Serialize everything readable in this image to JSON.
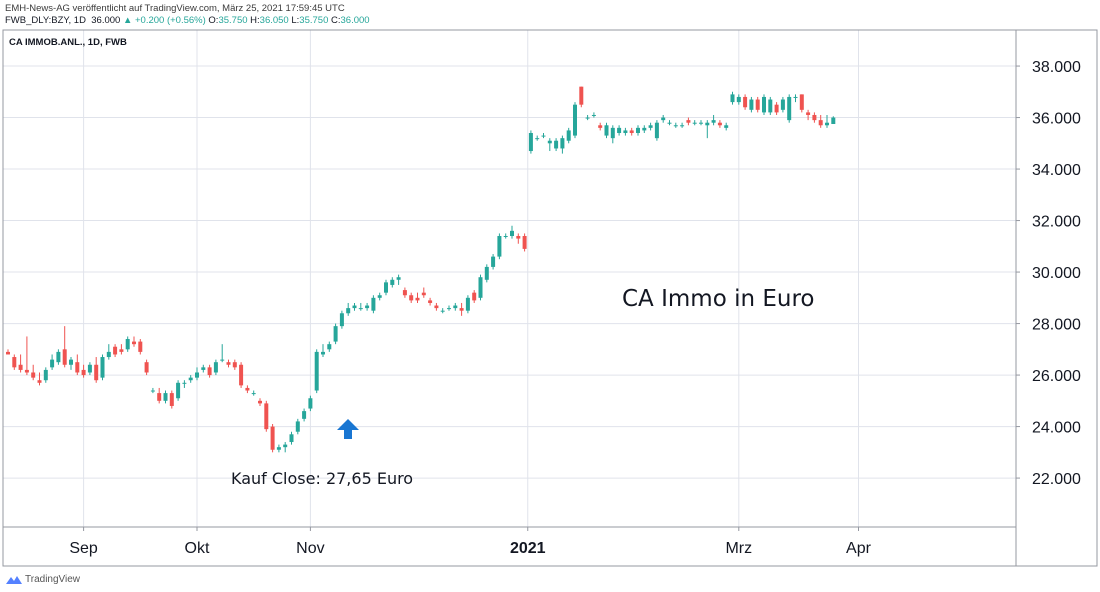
{
  "header": {
    "line1": "EMH-News-AG veröffentlicht auf TradingView.com, März 25, 2021 17:59:45 UTC",
    "ticker": "FWB_DLY:BZY, 1D",
    "last": "36.000",
    "change": "▲ +0.200 (+0.56%)",
    "ohlc_o": "O:",
    "ohlc_o_val": "35.750",
    "ohlc_h": "H:",
    "ohlc_h_val": "36.050",
    "ohlc_l": "L:",
    "ohlc_l_val": "35.750",
    "ohlc_c": "C:",
    "ohlc_c_val": "36.000"
  },
  "symbol_label": "CA IMMOB.ANL., 1D, FWB",
  "annotations": {
    "title": "CA Immo in Euro",
    "buy": "Kauf Close: 27,65 Euro"
  },
  "footer": {
    "brand": "TradingView"
  },
  "colors": {
    "up": "#26a69a",
    "down": "#ef5350",
    "arrow": "#1976d2",
    "grid": "#e0e3eb"
  },
  "chart_data": {
    "type": "candlestick",
    "title": "",
    "ylim": [
      20.1,
      39.4
    ],
    "y_ticks": [
      "22.000",
      "24.000",
      "26.000",
      "28.000",
      "30.000",
      "32.000",
      "34.000",
      "36.000",
      "38.000"
    ],
    "x_ticks": [
      "Sep",
      "Okt",
      "Nov",
      "2021",
      "Mrz",
      "Apr"
    ],
    "grid": true,
    "arrow_marker": {
      "label": "buy",
      "direction": "up"
    },
    "series": [
      {
        "x": 0,
        "o": 26.9,
        "h": 27.0,
        "l": 26.8,
        "c": 26.8
      },
      {
        "x": 1,
        "o": 26.7,
        "h": 26.8,
        "l": 26.2,
        "c": 26.3
      },
      {
        "x": 2,
        "o": 26.4,
        "h": 26.8,
        "l": 26.1,
        "c": 26.2
      },
      {
        "x": 3,
        "o": 26.2,
        "h": 27.5,
        "l": 26.0,
        "c": 26.1
      },
      {
        "x": 4,
        "o": 26.1,
        "h": 26.4,
        "l": 25.8,
        "c": 25.9
      },
      {
        "x": 5,
        "o": 25.8,
        "h": 26.1,
        "l": 25.6,
        "c": 25.7
      },
      {
        "x": 6,
        "o": 25.8,
        "h": 26.3,
        "l": 25.7,
        "c": 26.2
      },
      {
        "x": 7,
        "o": 26.3,
        "h": 26.8,
        "l": 26.2,
        "c": 26.6
      },
      {
        "x": 8,
        "o": 26.5,
        "h": 27.0,
        "l": 26.4,
        "c": 26.9
      },
      {
        "x": 9,
        "o": 27.0,
        "h": 27.9,
        "l": 26.3,
        "c": 26.4
      },
      {
        "x": 10,
        "o": 26.4,
        "h": 26.7,
        "l": 26.2,
        "c": 26.6
      },
      {
        "x": 11,
        "o": 26.5,
        "h": 26.8,
        "l": 26.0,
        "c": 26.1
      },
      {
        "x": 12,
        "o": 26.2,
        "h": 26.4,
        "l": 25.9,
        "c": 26.0
      },
      {
        "x": 13,
        "o": 26.1,
        "h": 26.5,
        "l": 26.0,
        "c": 26.4
      },
      {
        "x": 14,
        "o": 26.4,
        "h": 26.7,
        "l": 25.7,
        "c": 25.8
      },
      {
        "x": 15,
        "o": 25.9,
        "h": 26.8,
        "l": 25.8,
        "c": 26.7
      },
      {
        "x": 16,
        "o": 26.7,
        "h": 27.2,
        "l": 26.6,
        "c": 26.9
      },
      {
        "x": 17,
        "o": 27.1,
        "h": 27.2,
        "l": 26.7,
        "c": 26.8
      },
      {
        "x": 18,
        "o": 27.0,
        "h": 27.2,
        "l": 26.8,
        "c": 26.9
      },
      {
        "x": 19,
        "o": 27.0,
        "h": 27.5,
        "l": 26.9,
        "c": 27.4
      },
      {
        "x": 20,
        "o": 27.3,
        "h": 27.5,
        "l": 27.1,
        "c": 27.2
      },
      {
        "x": 21,
        "o": 27.3,
        "h": 27.4,
        "l": 26.8,
        "c": 26.9
      },
      {
        "x": 22,
        "o": 26.5,
        "h": 26.6,
        "l": 26.0,
        "c": 26.1
      },
      {
        "x": 23,
        "o": 25.4,
        "h": 25.5,
        "l": 25.3,
        "c": 25.4
      },
      {
        "x": 24,
        "o": 25.3,
        "h": 25.5,
        "l": 24.9,
        "c": 25.0
      },
      {
        "x": 25,
        "o": 25.0,
        "h": 25.4,
        "l": 24.9,
        "c": 25.3
      },
      {
        "x": 26,
        "o": 25.3,
        "h": 25.4,
        "l": 24.7,
        "c": 24.8
      },
      {
        "x": 27,
        "o": 25.1,
        "h": 25.8,
        "l": 25.0,
        "c": 25.7
      },
      {
        "x": 28,
        "o": 25.7,
        "h": 25.8,
        "l": 25.5,
        "c": 25.7
      },
      {
        "x": 29,
        "o": 25.8,
        "h": 26.0,
        "l": 25.7,
        "c": 25.9
      },
      {
        "x": 30,
        "o": 25.9,
        "h": 26.3,
        "l": 25.8,
        "c": 26.1
      },
      {
        "x": 31,
        "o": 26.2,
        "h": 26.4,
        "l": 26.1,
        "c": 26.3
      },
      {
        "x": 32,
        "o": 26.3,
        "h": 26.4,
        "l": 25.9,
        "c": 26.0
      },
      {
        "x": 33,
        "o": 26.1,
        "h": 26.6,
        "l": 26.0,
        "c": 26.5
      },
      {
        "x": 34,
        "o": 26.6,
        "h": 27.2,
        "l": 26.5,
        "c": 26.6
      },
      {
        "x": 35,
        "o": 26.5,
        "h": 26.6,
        "l": 26.3,
        "c": 26.4
      },
      {
        "x": 36,
        "o": 26.5,
        "h": 26.6,
        "l": 26.2,
        "c": 26.3
      },
      {
        "x": 37,
        "o": 26.4,
        "h": 26.5,
        "l": 25.5,
        "c": 25.6
      },
      {
        "x": 38,
        "o": 25.5,
        "h": 25.6,
        "l": 25.3,
        "c": 25.4
      },
      {
        "x": 39,
        "o": 25.3,
        "h": 25.4,
        "l": 25.2,
        "c": 25.3
      },
      {
        "x": 40,
        "o": 25.0,
        "h": 25.1,
        "l": 24.8,
        "c": 24.9
      },
      {
        "x": 41,
        "o": 24.9,
        "h": 25.0,
        "l": 23.8,
        "c": 23.9
      },
      {
        "x": 42,
        "o": 24.0,
        "h": 24.1,
        "l": 23.0,
        "c": 23.1
      },
      {
        "x": 43,
        "o": 23.1,
        "h": 23.3,
        "l": 23.0,
        "c": 23.2
      },
      {
        "x": 44,
        "o": 23.2,
        "h": 23.4,
        "l": 23.0,
        "c": 23.3
      },
      {
        "x": 45,
        "o": 23.4,
        "h": 23.8,
        "l": 23.3,
        "c": 23.7
      },
      {
        "x": 46,
        "o": 23.8,
        "h": 24.3,
        "l": 23.7,
        "c": 24.2
      },
      {
        "x": 47,
        "o": 24.3,
        "h": 24.7,
        "l": 24.2,
        "c": 24.6
      },
      {
        "x": 48,
        "o": 24.7,
        "h": 25.2,
        "l": 24.6,
        "c": 25.1
      },
      {
        "x": 49,
        "o": 25.4,
        "h": 27.0,
        "l": 25.3,
        "c": 26.9
      },
      {
        "x": 50,
        "o": 26.8,
        "h": 27.2,
        "l": 26.7,
        "c": 26.9
      },
      {
        "x": 51,
        "o": 27.0,
        "h": 27.3,
        "l": 26.9,
        "c": 27.2
      },
      {
        "x": 52,
        "o": 27.3,
        "h": 28.0,
        "l": 27.2,
        "c": 27.9
      },
      {
        "x": 53,
        "o": 27.9,
        "h": 28.5,
        "l": 27.8,
        "c": 28.4
      },
      {
        "x": 54,
        "o": 28.4,
        "h": 28.8,
        "l": 28.3,
        "c": 28.6
      },
      {
        "x": 55,
        "o": 28.6,
        "h": 28.8,
        "l": 28.5,
        "c": 28.7
      },
      {
        "x": 56,
        "o": 28.6,
        "h": 28.8,
        "l": 28.5,
        "c": 28.6
      },
      {
        "x": 57,
        "o": 28.6,
        "h": 28.8,
        "l": 28.5,
        "c": 28.7
      },
      {
        "x": 58,
        "o": 28.5,
        "h": 29.1,
        "l": 28.4,
        "c": 29.0
      },
      {
        "x": 59,
        "o": 29.0,
        "h": 29.2,
        "l": 28.9,
        "c": 29.1
      },
      {
        "x": 60,
        "o": 29.2,
        "h": 29.7,
        "l": 29.1,
        "c": 29.6
      },
      {
        "x": 61,
        "o": 29.5,
        "h": 29.8,
        "l": 29.4,
        "c": 29.7
      },
      {
        "x": 62,
        "o": 29.7,
        "h": 29.9,
        "l": 29.5,
        "c": 29.8
      },
      {
        "x": 63,
        "o": 29.3,
        "h": 29.4,
        "l": 29.0,
        "c": 29.1
      },
      {
        "x": 64,
        "o": 29.1,
        "h": 29.2,
        "l": 28.8,
        "c": 28.9
      },
      {
        "x": 65,
        "o": 29.0,
        "h": 29.2,
        "l": 28.8,
        "c": 28.9
      },
      {
        "x": 66,
        "o": 29.2,
        "h": 29.4,
        "l": 29.0,
        "c": 29.1
      },
      {
        "x": 67,
        "o": 28.9,
        "h": 29.0,
        "l": 28.7,
        "c": 28.8
      },
      {
        "x": 68,
        "o": 28.7,
        "h": 28.8,
        "l": 28.5,
        "c": 28.6
      },
      {
        "x": 69,
        "o": 28.5,
        "h": 28.6,
        "l": 28.4,
        "c": 28.5
      },
      {
        "x": 70,
        "o": 28.6,
        "h": 28.7,
        "l": 28.5,
        "c": 28.6
      },
      {
        "x": 71,
        "o": 28.6,
        "h": 28.8,
        "l": 28.5,
        "c": 28.7
      },
      {
        "x": 72,
        "o": 28.6,
        "h": 28.8,
        "l": 28.3,
        "c": 28.5
      },
      {
        "x": 73,
        "o": 28.5,
        "h": 29.1,
        "l": 28.4,
        "c": 29.0
      },
      {
        "x": 74,
        "o": 29.2,
        "h": 29.3,
        "l": 28.8,
        "c": 28.9
      },
      {
        "x": 75,
        "o": 29.0,
        "h": 29.9,
        "l": 28.9,
        "c": 29.8
      },
      {
        "x": 76,
        "o": 29.7,
        "h": 30.3,
        "l": 29.6,
        "c": 30.2
      },
      {
        "x": 77,
        "o": 30.2,
        "h": 30.7,
        "l": 30.1,
        "c": 30.6
      },
      {
        "x": 78,
        "o": 30.6,
        "h": 31.5,
        "l": 30.5,
        "c": 31.4
      },
      {
        "x": 79,
        "o": 31.4,
        "h": 31.5,
        "l": 31.3,
        "c": 31.4
      },
      {
        "x": 80,
        "o": 31.4,
        "h": 31.8,
        "l": 31.3,
        "c": 31.6
      },
      {
        "x": 81,
        "o": 31.4,
        "h": 31.5,
        "l": 31.1,
        "c": 31.3
      },
      {
        "x": 82,
        "o": 31.4,
        "h": 31.5,
        "l": 30.8,
        "c": 30.9
      },
      {
        "x": 83,
        "o": 34.7,
        "h": 35.5,
        "l": 34.6,
        "c": 35.4
      },
      {
        "x": 84,
        "o": 35.2,
        "h": 35.3,
        "l": 35.1,
        "c": 35.2
      },
      {
        "x": 85,
        "o": 35.3,
        "h": 35.4,
        "l": 35.2,
        "c": 35.3
      },
      {
        "x": 86,
        "o": 35.0,
        "h": 35.2,
        "l": 34.7,
        "c": 35.1
      },
      {
        "x": 87,
        "o": 34.8,
        "h": 35.2,
        "l": 34.7,
        "c": 35.1
      },
      {
        "x": 88,
        "o": 34.8,
        "h": 35.3,
        "l": 34.6,
        "c": 35.2
      },
      {
        "x": 89,
        "o": 35.1,
        "h": 35.6,
        "l": 35.0,
        "c": 35.5
      },
      {
        "x": 90,
        "o": 35.3,
        "h": 36.6,
        "l": 35.2,
        "c": 36.5
      },
      {
        "x": 91,
        "o": 37.2,
        "h": 37.2,
        "l": 36.4,
        "c": 36.5
      },
      {
        "x": 92,
        "o": 36.0,
        "h": 36.1,
        "l": 35.9,
        "c": 36.0
      },
      {
        "x": 93,
        "o": 36.1,
        "h": 36.2,
        "l": 36.0,
        "c": 36.1
      },
      {
        "x": 94,
        "o": 35.7,
        "h": 35.8,
        "l": 35.5,
        "c": 35.6
      },
      {
        "x": 95,
        "o": 35.3,
        "h": 35.8,
        "l": 35.2,
        "c": 35.7
      },
      {
        "x": 96,
        "o": 35.2,
        "h": 35.7,
        "l": 35.0,
        "c": 35.6
      },
      {
        "x": 97,
        "o": 35.4,
        "h": 35.7,
        "l": 35.3,
        "c": 35.6
      },
      {
        "x": 98,
        "o": 35.4,
        "h": 35.6,
        "l": 35.3,
        "c": 35.5
      },
      {
        "x": 99,
        "o": 35.5,
        "h": 35.6,
        "l": 35.3,
        "c": 35.4
      },
      {
        "x": 100,
        "o": 35.4,
        "h": 35.7,
        "l": 35.3,
        "c": 35.6
      },
      {
        "x": 101,
        "o": 35.5,
        "h": 35.7,
        "l": 35.4,
        "c": 35.6
      },
      {
        "x": 102,
        "o": 35.6,
        "h": 35.8,
        "l": 35.5,
        "c": 35.7
      },
      {
        "x": 103,
        "o": 35.2,
        "h": 35.9,
        "l": 35.1,
        "c": 35.8
      },
      {
        "x": 104,
        "o": 35.9,
        "h": 36.1,
        "l": 35.8,
        "c": 36.0
      },
      {
        "x": 105,
        "o": 35.8,
        "h": 35.9,
        "l": 35.7,
        "c": 35.8
      },
      {
        "x": 106,
        "o": 35.7,
        "h": 35.8,
        "l": 35.6,
        "c": 35.7
      },
      {
        "x": 107,
        "o": 35.7,
        "h": 35.8,
        "l": 35.6,
        "c": 35.7
      },
      {
        "x": 108,
        "o": 35.9,
        "h": 36.0,
        "l": 35.7,
        "c": 35.8
      },
      {
        "x": 109,
        "o": 35.8,
        "h": 35.9,
        "l": 35.7,
        "c": 35.8
      },
      {
        "x": 110,
        "o": 35.8,
        "h": 35.9,
        "l": 35.7,
        "c": 35.8
      },
      {
        "x": 111,
        "o": 35.7,
        "h": 35.9,
        "l": 35.2,
        "c": 35.8
      },
      {
        "x": 112,
        "o": 35.8,
        "h": 36.1,
        "l": 35.7,
        "c": 35.9
      },
      {
        "x": 113,
        "o": 35.8,
        "h": 35.9,
        "l": 35.6,
        "c": 35.7
      },
      {
        "x": 114,
        "o": 35.6,
        "h": 35.8,
        "l": 35.5,
        "c": 35.7
      },
      {
        "x": 115,
        "o": 36.6,
        "h": 37.0,
        "l": 36.5,
        "c": 36.9
      },
      {
        "x": 116,
        "o": 36.6,
        "h": 36.9,
        "l": 36.5,
        "c": 36.8
      },
      {
        "x": 117,
        "o": 36.8,
        "h": 36.9,
        "l": 36.3,
        "c": 36.4
      },
      {
        "x": 118,
        "o": 36.3,
        "h": 36.8,
        "l": 36.2,
        "c": 36.7
      },
      {
        "x": 119,
        "o": 36.7,
        "h": 36.8,
        "l": 36.2,
        "c": 36.3
      },
      {
        "x": 120,
        "o": 36.2,
        "h": 36.9,
        "l": 36.1,
        "c": 36.8
      },
      {
        "x": 121,
        "o": 36.2,
        "h": 36.8,
        "l": 36.1,
        "c": 36.7
      },
      {
        "x": 122,
        "o": 36.5,
        "h": 36.6,
        "l": 36.1,
        "c": 36.2
      },
      {
        "x": 123,
        "o": 36.3,
        "h": 36.8,
        "l": 36.2,
        "c": 36.7
      },
      {
        "x": 124,
        "o": 35.9,
        "h": 36.9,
        "l": 35.8,
        "c": 36.8
      },
      {
        "x": 125,
        "o": 36.8,
        "h": 36.9,
        "l": 36.6,
        "c": 36.8
      },
      {
        "x": 126,
        "o": 36.9,
        "h": 36.9,
        "l": 36.2,
        "c": 36.3
      },
      {
        "x": 127,
        "o": 36.2,
        "h": 36.3,
        "l": 35.9,
        "c": 36.1
      },
      {
        "x": 128,
        "o": 36.1,
        "h": 36.2,
        "l": 35.8,
        "c": 35.9
      },
      {
        "x": 129,
        "o": 35.9,
        "h": 36.1,
        "l": 35.6,
        "c": 35.7
      },
      {
        "x": 130,
        "o": 35.7,
        "h": 36.1,
        "l": 35.6,
        "c": 35.8
      },
      {
        "x": 131,
        "o": 35.75,
        "h": 36.05,
        "l": 35.75,
        "c": 36.0
      }
    ]
  }
}
